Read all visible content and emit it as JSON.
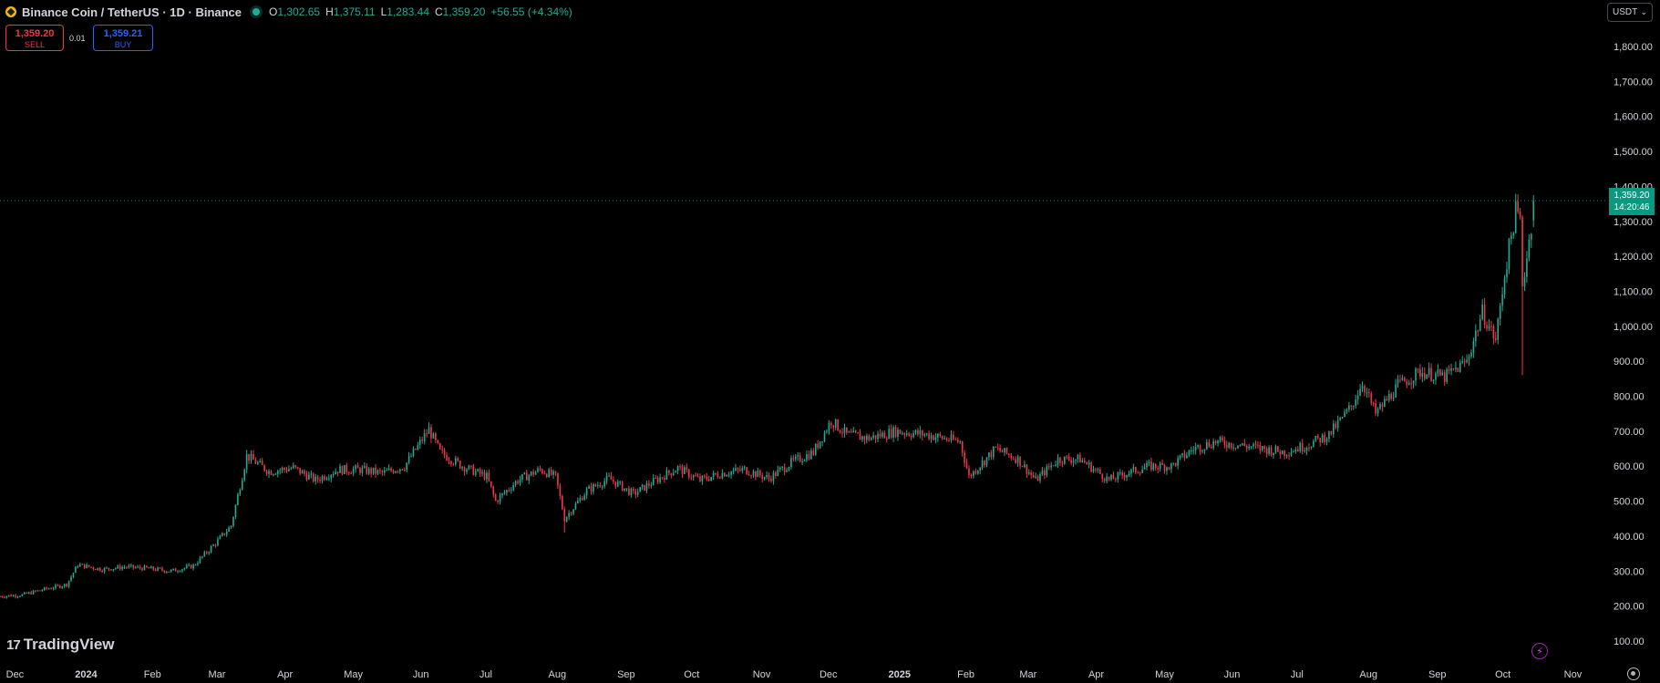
{
  "legend": {
    "symbol": "Binance Coin / TetherUS · 1D · Binance",
    "open_label": "O",
    "open": "1,302.65",
    "high_label": "H",
    "high": "1,375.11",
    "low_label": "L",
    "low": "1,283.44",
    "close_label": "C",
    "close": "1,359.20",
    "change": "+56.55 (+4.34%)"
  },
  "trade": {
    "sell_price": "1,359.20",
    "sell_label": "SELL",
    "spread": "0.01",
    "buy_price": "1,359.21",
    "buy_label": "BUY"
  },
  "currency": "USDT",
  "last_price": {
    "price": "1,359.20",
    "countdown": "14:20:46"
  },
  "brand": "TradingView",
  "colors": {
    "up": "#22ab94",
    "down": "#f23645",
    "tag": "#089981",
    "background": "#000000"
  },
  "icons": {
    "alert": "lightning-icon",
    "settings": "gear-icon"
  },
  "chart_data": {
    "type": "candlestick",
    "interval": "1D",
    "ylim": [
      100,
      1800
    ],
    "y_ticks": [
      "1,800.00",
      "1,700.00",
      "1,600.00",
      "1,500.00",
      "1,400.00",
      "1,300.00",
      "1,200.00",
      "1,100.00",
      "1,000.00",
      "900.00",
      "800.00",
      "700.00",
      "600.00",
      "500.00",
      "400.00",
      "300.00",
      "200.00",
      "100.00"
    ],
    "x_ticks": [
      "Dec",
      "2024",
      "Feb",
      "Mar",
      "Apr",
      "May",
      "Jun",
      "Jul",
      "Aug",
      "Sep",
      "Oct",
      "Nov",
      "Dec",
      "2025",
      "Feb",
      "Mar",
      "Apr",
      "May",
      "Jun",
      "Jul",
      "Aug",
      "Sep",
      "Oct",
      "Nov"
    ],
    "x_tick_months": [
      "2023-12",
      "2024-01",
      "2024-02",
      "2024-03",
      "2024-04",
      "2024-05",
      "2024-06",
      "2024-07",
      "2024-08",
      "2024-09",
      "2024-10",
      "2024-11",
      "2024-12",
      "2025-01",
      "2025-02",
      "2025-03",
      "2025-04",
      "2025-05",
      "2025-06",
      "2025-07",
      "2025-08",
      "2025-09",
      "2025-10",
      "2025-11"
    ],
    "last_price": 1359.2,
    "series": [
      {
        "points": [
          [
            "2023-11-25",
            228
          ],
          [
            "2023-12-05",
            232
          ],
          [
            "2023-12-15",
            248
          ],
          [
            "2023-12-25",
            262
          ],
          [
            "2023-12-30",
            318
          ],
          [
            "2024-01-10",
            305
          ],
          [
            "2024-01-20",
            312
          ],
          [
            "2024-01-30",
            308
          ],
          [
            "2024-02-10",
            300
          ],
          [
            "2024-02-20",
            315
          ],
          [
            "2024-03-01",
            380
          ],
          [
            "2024-03-08",
            430
          ],
          [
            "2024-03-15",
            630
          ],
          [
            "2024-03-25",
            585
          ],
          [
            "2024-04-05",
            595
          ],
          [
            "2024-04-15",
            560
          ],
          [
            "2024-04-25",
            590
          ],
          [
            "2024-05-05",
            590
          ],
          [
            "2024-05-15",
            580
          ],
          [
            "2024-05-25",
            600
          ],
          [
            "2024-06-05",
            705
          ],
          [
            "2024-06-10",
            640
          ],
          [
            "2024-06-20",
            600
          ],
          [
            "2024-07-01",
            570
          ],
          [
            "2024-07-05",
            500
          ],
          [
            "2024-07-15",
            560
          ],
          [
            "2024-07-25",
            590
          ],
          [
            "2024-08-01",
            570
          ],
          [
            "2024-08-05",
            450
          ],
          [
            "2024-08-15",
            530
          ],
          [
            "2024-08-25",
            565
          ],
          [
            "2024-09-05",
            520
          ],
          [
            "2024-09-15",
            560
          ],
          [
            "2024-09-25",
            595
          ],
          [
            "2024-10-05",
            560
          ],
          [
            "2024-10-15",
            580
          ],
          [
            "2024-10-25",
            590
          ],
          [
            "2024-11-05",
            565
          ],
          [
            "2024-11-15",
            610
          ],
          [
            "2024-11-25",
            640
          ],
          [
            "2024-12-03",
            730
          ],
          [
            "2024-12-10",
            690
          ],
          [
            "2024-12-20",
            680
          ],
          [
            "2025-01-01",
            700
          ],
          [
            "2025-01-15",
            690
          ],
          [
            "2025-01-30",
            670
          ],
          [
            "2025-02-03",
            570
          ],
          [
            "2025-02-15",
            650
          ],
          [
            "2025-02-25",
            620
          ],
          [
            "2025-03-05",
            560
          ],
          [
            "2025-03-15",
            620
          ],
          [
            "2025-03-25",
            620
          ],
          [
            "2025-04-07",
            560
          ],
          [
            "2025-04-15",
            580
          ],
          [
            "2025-04-25",
            600
          ],
          [
            "2025-05-05",
            600
          ],
          [
            "2025-05-15",
            650
          ],
          [
            "2025-05-25",
            670
          ],
          [
            "2025-06-05",
            660
          ],
          [
            "2025-06-15",
            650
          ],
          [
            "2025-06-25",
            640
          ],
          [
            "2025-07-05",
            660
          ],
          [
            "2025-07-15",
            690
          ],
          [
            "2025-07-25",
            770
          ],
          [
            "2025-07-30",
            840
          ],
          [
            "2025-08-05",
            750
          ],
          [
            "2025-08-15",
            830
          ],
          [
            "2025-08-25",
            870
          ],
          [
            "2025-09-05",
            855
          ],
          [
            "2025-09-15",
            900
          ],
          [
            "2025-09-22",
            1040
          ],
          [
            "2025-09-28",
            960
          ],
          [
            "2025-10-02",
            1150
          ],
          [
            "2025-10-07",
            1330
          ],
          [
            "2025-10-09",
            1300
          ],
          [
            "2025-10-10",
            1120
          ],
          [
            "2025-10-12",
            1200
          ],
          [
            "2025-10-14",
            1290
          ],
          [
            "2025-10-15",
            1359.2
          ]
        ]
      }
    ]
  }
}
